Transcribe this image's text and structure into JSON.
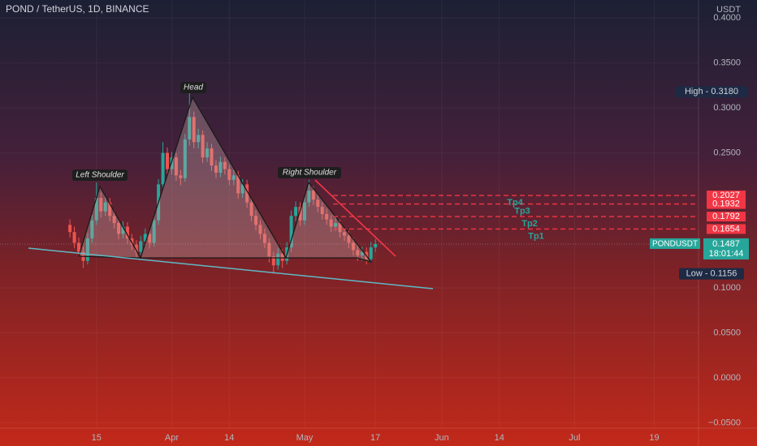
{
  "header": {
    "title": "POND / TetherUS, 1D, BINANCE",
    "currency": "USDT"
  },
  "chart_data": {
    "type": "candlestick",
    "open": [
      0.17,
      0.162,
      0.15,
      0.14,
      0.13,
      0.155,
      0.175,
      0.2,
      0.185,
      0.195,
      0.18,
      0.172,
      0.16,
      0.168,
      0.155,
      0.148,
      0.14,
      0.152,
      0.16,
      0.15,
      0.175,
      0.215,
      0.25,
      0.232,
      0.245,
      0.225,
      0.222,
      0.265,
      0.29,
      0.262,
      0.27,
      0.245,
      0.255,
      0.236,
      0.228,
      0.24,
      0.232,
      0.22,
      0.225,
      0.205,
      0.215,
      0.195,
      0.18,
      0.17,
      0.16,
      0.15,
      0.135,
      0.125,
      0.138,
      0.13,
      0.145,
      0.18,
      0.19,
      0.175,
      0.195,
      0.208,
      0.198,
      0.19,
      0.182,
      0.176,
      0.168,
      0.172,
      0.162,
      0.158,
      0.15,
      0.142,
      0.136,
      0.14,
      0.132,
      0.145
    ],
    "high": [
      0.176,
      0.168,
      0.156,
      0.146,
      0.161,
      0.181,
      0.217,
      0.206,
      0.201,
      0.2,
      0.186,
      0.177,
      0.174,
      0.173,
      0.16,
      0.153,
      0.158,
      0.166,
      0.165,
      0.181,
      0.221,
      0.262,
      0.256,
      0.251,
      0.25,
      0.231,
      0.271,
      0.318,
      0.296,
      0.277,
      0.275,
      0.262,
      0.26,
      0.242,
      0.246,
      0.245,
      0.237,
      0.231,
      0.23,
      0.221,
      0.22,
      0.2,
      0.186,
      0.175,
      0.166,
      0.155,
      0.14,
      0.144,
      0.143,
      0.151,
      0.186,
      0.196,
      0.195,
      0.201,
      0.22,
      0.213,
      0.204,
      0.195,
      0.188,
      0.181,
      0.178,
      0.176,
      0.167,
      0.163,
      0.156,
      0.148,
      0.146,
      0.145,
      0.151,
      0.154
    ],
    "low": [
      0.156,
      0.144,
      0.134,
      0.122,
      0.126,
      0.15,
      0.17,
      0.178,
      0.18,
      0.174,
      0.166,
      0.154,
      0.155,
      0.149,
      0.142,
      0.133,
      0.136,
      0.147,
      0.144,
      0.146,
      0.17,
      0.21,
      0.226,
      0.226,
      0.219,
      0.214,
      0.218,
      0.258,
      0.255,
      0.255,
      0.239,
      0.24,
      0.23,
      0.222,
      0.223,
      0.226,
      0.214,
      0.214,
      0.199,
      0.2,
      0.189,
      0.174,
      0.164,
      0.154,
      0.144,
      0.128,
      0.1156,
      0.12,
      0.122,
      0.126,
      0.14,
      0.174,
      0.169,
      0.17,
      0.19,
      0.192,
      0.184,
      0.176,
      0.17,
      0.162,
      0.163,
      0.156,
      0.152,
      0.144,
      0.136,
      0.13,
      0.13,
      0.126,
      0.128,
      0.14
    ],
    "close": [
      0.162,
      0.15,
      0.14,
      0.13,
      0.155,
      0.175,
      0.2,
      0.185,
      0.195,
      0.18,
      0.172,
      0.16,
      0.168,
      0.155,
      0.148,
      0.14,
      0.152,
      0.16,
      0.15,
      0.175,
      0.215,
      0.25,
      0.232,
      0.245,
      0.225,
      0.222,
      0.265,
      0.29,
      0.262,
      0.27,
      0.245,
      0.255,
      0.236,
      0.228,
      0.24,
      0.232,
      0.22,
      0.225,
      0.205,
      0.215,
      0.195,
      0.18,
      0.17,
      0.16,
      0.15,
      0.135,
      0.125,
      0.138,
      0.13,
      0.145,
      0.18,
      0.19,
      0.175,
      0.195,
      0.208,
      0.198,
      0.19,
      0.182,
      0.176,
      0.168,
      0.172,
      0.162,
      0.158,
      0.15,
      0.142,
      0.136,
      0.14,
      0.132,
      0.145,
      0.1487
    ],
    "up_color": "#26a69a",
    "down_color": "#ef5350",
    "xlim": [
      -15.8,
      142
    ],
    "xticks": [
      {
        "value": 6,
        "label": "15"
      },
      {
        "value": 23,
        "label": "Apr"
      },
      {
        "value": 36,
        "label": "14"
      },
      {
        "value": 53,
        "label": "May"
      },
      {
        "value": 69,
        "label": "17"
      },
      {
        "value": 84,
        "label": "Jun"
      },
      {
        "value": 97,
        "label": "14"
      },
      {
        "value": 114,
        "label": "Jul"
      },
      {
        "value": 132,
        "label": "19"
      }
    ],
    "ylim": [
      -0.056,
      0.42
    ],
    "yticks": [
      {
        "value": 0.4,
        "label": "0.4000"
      },
      {
        "value": 0.35,
        "label": "0.3500"
      },
      {
        "value": 0.3,
        "label": "0.3000"
      },
      {
        "value": 0.25,
        "label": "0.2500"
      },
      {
        "value": 0.1,
        "label": "0.1000"
      },
      {
        "value": 0.05,
        "label": "0.0500"
      },
      {
        "value": 0,
        "label": "0.0000"
      },
      {
        "value": -0.05,
        "label": "−0.0500"
      }
    ],
    "grid": true,
    "annotations": [
      "Left Shoulder",
      "Head",
      "Right Shoulder"
    ],
    "targets": [
      {
        "name": "Tp1",
        "value": 0.1654,
        "label": "0.1654"
      },
      {
        "name": "Tp2",
        "value": 0.1792,
        "label": "0.1792"
      },
      {
        "name": "Tp3",
        "value": 0.1932,
        "label": "0.1932"
      },
      {
        "name": "Tp4",
        "value": 0.2027,
        "label": "0.2027"
      }
    ],
    "high_marker": {
      "value": 0.318,
      "label": "High - 0.3180"
    },
    "low_marker": {
      "value": 0.1156,
      "label": "Low - 0.1156"
    },
    "last_price": {
      "symbol": "PONDUSDT",
      "value": 0.1487,
      "label": "0.1487",
      "countdown": "18:01:44"
    }
  }
}
